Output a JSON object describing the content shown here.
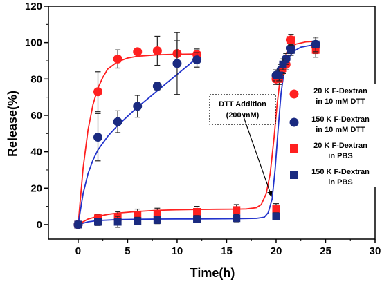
{
  "chart_data": {
    "type": "scatter",
    "title": "",
    "xlabel": "Time(h)",
    "ylabel": "Release(%)",
    "xlim": [
      -3,
      30
    ],
    "ylim": [
      -8,
      120
    ],
    "xticks": [
      0,
      5,
      10,
      15,
      20,
      25,
      30
    ],
    "yticks": [
      0,
      20,
      40,
      60,
      80,
      100,
      120
    ],
    "grid": false,
    "legend_position": "right",
    "series": [
      {
        "name": "20 K F-Dextran in 10 mM DTT",
        "legend_lines": [
          "20 K F-Dextran",
          "in 10 mM DTT"
        ],
        "marker": "circle",
        "color": "#ff2020",
        "points": [
          {
            "x": 0,
            "y": 0,
            "err": 0
          },
          {
            "x": 2,
            "y": 73,
            "err": 11
          },
          {
            "x": 4,
            "y": 91,
            "err": 5
          },
          {
            "x": 6,
            "y": 95,
            "err": 1
          },
          {
            "x": 8,
            "y": 95.5,
            "err": 8
          },
          {
            "x": 10,
            "y": 94,
            "err": 7
          },
          {
            "x": 12,
            "y": 93.5,
            "err": 3
          },
          {
            "x": 20,
            "y": 80,
            "err": 3
          },
          {
            "x": 20.5,
            "y": 84,
            "err": 3
          },
          {
            "x": 21,
            "y": 88,
            "err": 3
          },
          {
            "x": 21.5,
            "y": 101.5,
            "err": 3
          },
          {
            "x": 24,
            "y": 98,
            "err": 4
          }
        ],
        "curve": [
          [
            0,
            0
          ],
          [
            0.5,
            31
          ],
          [
            1,
            52
          ],
          [
            1.5,
            66
          ],
          [
            2,
            75
          ],
          [
            2.5,
            81
          ],
          [
            3,
            85.5
          ],
          [
            4,
            89.5
          ],
          [
            5,
            91.5
          ],
          [
            6,
            92.5
          ],
          [
            8,
            93.3
          ],
          [
            10,
            93.6
          ],
          [
            12,
            93.7
          ]
        ]
      },
      {
        "name": "150 K F-Dextran in 10 mM DTT",
        "legend_lines": [
          "150 K F-Dextran",
          "in 10 mM DTT"
        ],
        "marker": "circle",
        "color": "#1a2a80",
        "points": [
          {
            "x": 0,
            "y": 0,
            "err": 0
          },
          {
            "x": 2,
            "y": 48,
            "err": 13
          },
          {
            "x": 4,
            "y": 56.5,
            "err": 6
          },
          {
            "x": 6,
            "y": 65,
            "err": 6
          },
          {
            "x": 8,
            "y": 76,
            "err": 2
          },
          {
            "x": 10,
            "y": 88.5,
            "err": 17
          },
          {
            "x": 12,
            "y": 90.5,
            "err": 4
          },
          {
            "x": 20,
            "y": 82,
            "err": 3
          },
          {
            "x": 20.5,
            "y": 85,
            "err": 3
          },
          {
            "x": 21,
            "y": 91,
            "err": 3
          },
          {
            "x": 21.5,
            "y": 97,
            "err": 3
          },
          {
            "x": 24,
            "y": 99,
            "err": 4
          }
        ],
        "curve": [
          [
            0,
            0
          ],
          [
            0.5,
            17
          ],
          [
            1,
            28
          ],
          [
            1.5,
            35.5
          ],
          [
            2,
            41
          ],
          [
            3,
            48.5
          ],
          [
            4,
            54.5
          ],
          [
            5,
            59.5
          ],
          [
            6,
            64.5
          ],
          [
            7,
            69
          ],
          [
            8,
            73.5
          ],
          [
            9,
            78
          ],
          [
            10,
            82.5
          ],
          [
            11,
            87
          ],
          [
            12,
            91.5
          ]
        ]
      },
      {
        "name": "20 K F-Dextran in PBS",
        "legend_lines": [
          "20 K F-Dextran",
          "in PBS"
        ],
        "marker": "square",
        "color": "#ff2020",
        "points": [
          {
            "x": 0,
            "y": 0,
            "err": 0
          },
          {
            "x": 2,
            "y": 3.5,
            "err": 2
          },
          {
            "x": 4,
            "y": 4,
            "err": 3
          },
          {
            "x": 6,
            "y": 5.5,
            "err": 3
          },
          {
            "x": 8,
            "y": 6,
            "err": 3
          },
          {
            "x": 12,
            "y": 7,
            "err": 3
          },
          {
            "x": 16,
            "y": 8,
            "err": 3
          },
          {
            "x": 20,
            "y": 8.5,
            "err": 3
          },
          {
            "x": 20.3,
            "y": 80,
            "err": 3
          },
          {
            "x": 20.7,
            "y": 86,
            "err": 3
          },
          {
            "x": 21.5,
            "y": 101.5,
            "err": 3
          },
          {
            "x": 24,
            "y": 96,
            "err": 4
          }
        ],
        "curve": [
          [
            0,
            0
          ],
          [
            1,
            3
          ],
          [
            2,
            4.5
          ],
          [
            3,
            5.6
          ],
          [
            4,
            6.3
          ],
          [
            6,
            7.2
          ],
          [
            8,
            7.8
          ],
          [
            10,
            8.1
          ],
          [
            12,
            8.3
          ],
          [
            14,
            8.4
          ],
          [
            16,
            8.5
          ],
          [
            17,
            8.6
          ],
          [
            18,
            9.3
          ],
          [
            18.5,
            11
          ],
          [
            19,
            17
          ],
          [
            19.4,
            28
          ],
          [
            19.8,
            48
          ],
          [
            20.1,
            66
          ],
          [
            20.4,
            80
          ],
          [
            20.7,
            88
          ],
          [
            21,
            93.5
          ],
          [
            21.5,
            97.5
          ],
          [
            22,
            99.2
          ],
          [
            23,
            100.4
          ],
          [
            24,
            100.7
          ]
        ]
      },
      {
        "name": "150 K F-Dextran in PBS",
        "legend_lines": [
          "150 K F-Dextran",
          "in PBS"
        ],
        "marker": "square",
        "color": "#1a2a80",
        "points": [
          {
            "x": 0,
            "y": 0,
            "err": 0
          },
          {
            "x": 2,
            "y": 1.5,
            "err": 2
          },
          {
            "x": 4,
            "y": 1.5,
            "err": 3
          },
          {
            "x": 6,
            "y": 2,
            "err": 2
          },
          {
            "x": 8,
            "y": 2.5,
            "err": 2
          },
          {
            "x": 12,
            "y": 3,
            "err": 2
          },
          {
            "x": 16,
            "y": 3.5,
            "err": 2
          },
          {
            "x": 20,
            "y": 4.5,
            "err": 2
          },
          {
            "x": 20.3,
            "y": 82,
            "err": 3
          },
          {
            "x": 20.7,
            "y": 88,
            "err": 3
          },
          {
            "x": 21.5,
            "y": 96,
            "err": 3
          },
          {
            "x": 24,
            "y": 99,
            "err": 4
          }
        ],
        "curve": [
          [
            0,
            0
          ],
          [
            1,
            1.5
          ],
          [
            2,
            2.2
          ],
          [
            4,
            2.7
          ],
          [
            6,
            2.9
          ],
          [
            8,
            3.0
          ],
          [
            12,
            3.1
          ],
          [
            16,
            3.2
          ],
          [
            18,
            3.4
          ],
          [
            18.8,
            4
          ],
          [
            19.2,
            6.5
          ],
          [
            19.6,
            14
          ],
          [
            19.9,
            30
          ],
          [
            20.2,
            52
          ],
          [
            20.5,
            72
          ],
          [
            20.8,
            84
          ],
          [
            21.2,
            91
          ],
          [
            21.7,
            95
          ],
          [
            22.5,
            97.5
          ],
          [
            23.5,
            98.5
          ],
          [
            24,
            98.8
          ]
        ]
      }
    ],
    "annotation": {
      "lines": [
        "DTT Addition",
        "(200 mM)"
      ],
      "arrow_from": [
        16.6,
        61
      ],
      "arrow_to": [
        19.5,
        16
      ]
    }
  }
}
